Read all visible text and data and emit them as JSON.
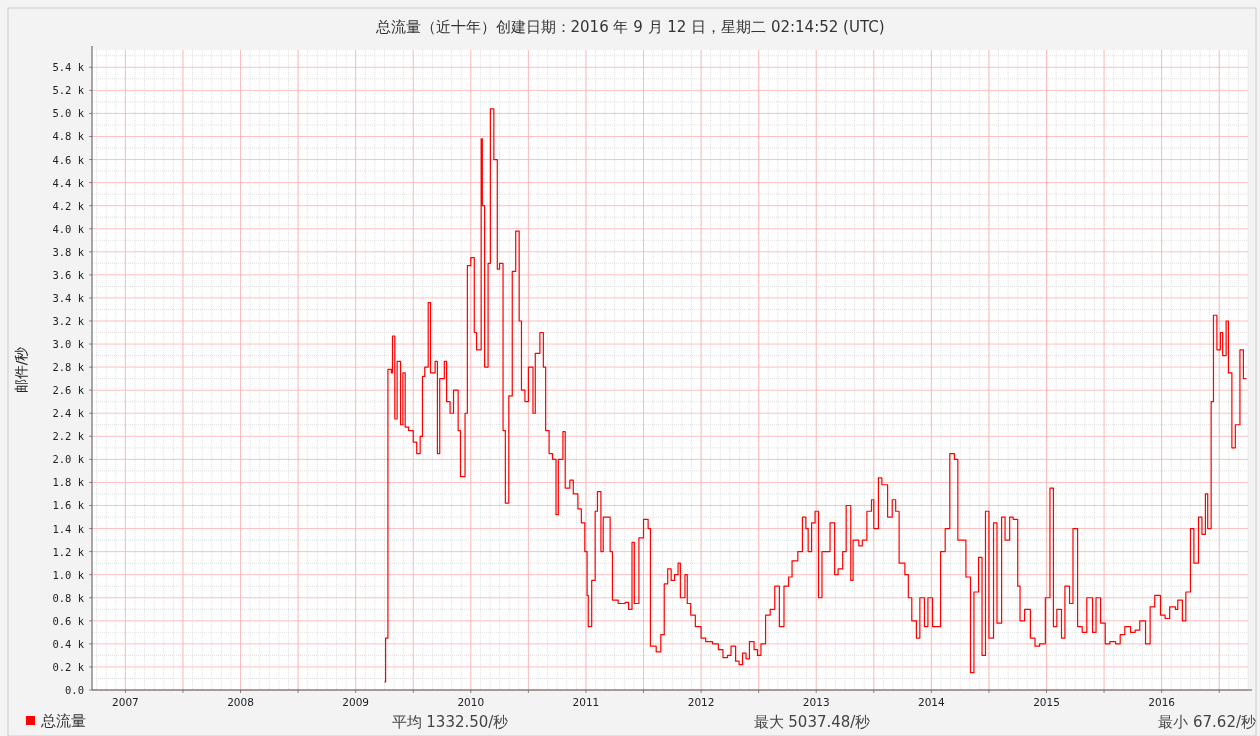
{
  "chart_data": {
    "type": "step",
    "title": "总流量（近十年）创建日期：2016 年 9 月 12 日，星期二 02:14:52 (UTC)",
    "ylabel": "邮件/秒",
    "annotations": [
      "平均 1332.50/秒",
      "最大 5037.48/秒",
      "最小 67.62/秒"
    ],
    "legend": "bottom left",
    "grid": true,
    "xlim": [
      2006.71,
      2016.75
    ],
    "ylim": [
      0,
      5550
    ],
    "xticks": [
      2007,
      {
        "value": 2007.5,
        "label": null
      },
      2008,
      {
        "value": 2008.5,
        "label": null
      },
      2009,
      {
        "value": 2009.5,
        "label": null
      },
      2010,
      {
        "value": 2010.5,
        "label": null
      },
      2011,
      {
        "value": 2011.5,
        "label": null
      },
      2012,
      {
        "value": 2012.5,
        "label": null
      },
      2013,
      {
        "value": 2013.5,
        "label": null
      },
      2014,
      {
        "value": 2014.5,
        "label": null
      },
      2015,
      {
        "value": 2015.5,
        "label": null
      },
      2016,
      {
        "value": 2016.5,
        "label": null
      }
    ],
    "yticks": [
      {
        "value": 0,
        "label": "0.0"
      },
      {
        "value": 200,
        "label": "0.2 k"
      },
      {
        "value": 400,
        "label": "0.4 k"
      },
      {
        "value": 600,
        "label": "0.6 k"
      },
      {
        "value": 800,
        "label": "0.8 k"
      },
      {
        "value": 1000,
        "label": "1.0 k"
      },
      {
        "value": 1200,
        "label": "1.2 k"
      },
      {
        "value": 1400,
        "label": "1.4 k"
      },
      {
        "value": 1600,
        "label": "1.6 k"
      },
      {
        "value": 1800,
        "label": "1.8 k"
      },
      {
        "value": 2000,
        "label": "2.0 k"
      },
      {
        "value": 2200,
        "label": "2.2 k"
      },
      {
        "value": 2400,
        "label": "2.4 k"
      },
      {
        "value": 2600,
        "label": "2.6 k"
      },
      {
        "value": 2800,
        "label": "2.8 k"
      },
      {
        "value": 3000,
        "label": "3.0 k"
      },
      {
        "value": 3200,
        "label": "3.2 k"
      },
      {
        "value": 3400,
        "label": "3.4 k"
      },
      {
        "value": 3600,
        "label": "3.6 k"
      },
      {
        "value": 3800,
        "label": "3.8 k"
      },
      {
        "value": 4000,
        "label": "4.0 k"
      },
      {
        "value": 4200,
        "label": "4.2 k"
      },
      {
        "value": 4400,
        "label": "4.4 k"
      },
      {
        "value": 4600,
        "label": "4.6 k"
      },
      {
        "value": 4800,
        "label": "4.8 k"
      },
      {
        "value": 5000,
        "label": "5.0 k"
      },
      {
        "value": 5200,
        "label": "5.2 k"
      },
      {
        "value": 5400,
        "label": "5.4 k"
      }
    ],
    "series": [
      {
        "name": "总流量",
        "color": "#ff0000",
        "x": [
          2009.25,
          2009.26,
          2009.28,
          2009.31,
          2009.32,
          2009.34,
          2009.36,
          2009.39,
          2009.41,
          2009.43,
          2009.46,
          2009.5,
          2009.53,
          2009.56,
          2009.58,
          2009.6,
          2009.63,
          2009.65,
          2009.69,
          2009.71,
          2009.73,
          2009.77,
          2009.79,
          2009.82,
          2009.85,
          2009.89,
          2009.91,
          2009.95,
          2009.97,
          2010.0,
          2010.03,
          2010.05,
          2010.09,
          2010.1,
          2010.12,
          2010.15,
          2010.17,
          2010.2,
          2010.23,
          2010.25,
          2010.28,
          2010.3,
          2010.33,
          2010.36,
          2010.39,
          2010.42,
          2010.44,
          2010.47,
          2010.5,
          2010.54,
          2010.56,
          2010.6,
          2010.63,
          2010.65,
          2010.68,
          2010.71,
          2010.74,
          2010.76,
          2010.8,
          2010.82,
          2010.86,
          2010.89,
          2010.93,
          2010.96,
          2010.99,
          2011.01,
          2011.02,
          2011.05,
          2011.08,
          2011.1,
          2011.13,
          2011.15,
          2011.18,
          2011.21,
          2011.23,
          2011.28,
          2011.34,
          2011.37,
          2011.4,
          2011.42,
          2011.46,
          2011.5,
          2011.54,
          2011.56,
          2011.61,
          2011.65,
          2011.68,
          2011.71,
          2011.74,
          2011.77,
          2011.8,
          2011.82,
          2011.86,
          2011.88,
          2011.91,
          2011.95,
          2012.0,
          2012.04,
          2012.1,
          2012.15,
          2012.19,
          2012.23,
          2012.26,
          2012.3,
          2012.33,
          2012.36,
          2012.39,
          2012.42,
          2012.46,
          2012.49,
          2012.52,
          2012.56,
          2012.6,
          2012.64,
          2012.68,
          2012.72,
          2012.76,
          2012.79,
          2012.84,
          2012.88,
          2012.91,
          2012.93,
          2012.96,
          2012.99,
          2013.02,
          2013.05,
          2013.09,
          2013.12,
          2013.16,
          2013.19,
          2013.23,
          2013.26,
          2013.3,
          2013.32,
          2013.37,
          2013.4,
          2013.44,
          2013.48,
          2013.5,
          2013.54,
          2013.57,
          2013.62,
          2013.66,
          2013.69,
          2013.72,
          2013.77,
          2013.8,
          2013.83,
          2013.87,
          2013.9,
          2013.94,
          2013.97,
          2014.01,
          2014.04,
          2014.08,
          2014.12,
          2014.16,
          2014.2,
          2014.23,
          2014.27,
          2014.3,
          2014.34,
          2014.37,
          2014.41,
          2014.44,
          2014.47,
          2014.5,
          2014.54,
          2014.57,
          2014.61,
          2014.64,
          2014.68,
          2014.71,
          2014.75,
          2014.77,
          2014.81,
          2014.86,
          2014.9,
          2014.94,
          2014.99,
          2015.03,
          2015.06,
          2015.09,
          2015.13,
          2015.16,
          2015.2,
          2015.23,
          2015.27,
          2015.31,
          2015.35,
          2015.4,
          2015.43,
          2015.47,
          2015.51,
          2015.55,
          2015.6,
          2015.64,
          2015.68,
          2015.73,
          2015.77,
          2015.81,
          2015.86,
          2015.9,
          2015.94,
          2015.99,
          2016.03,
          2016.07,
          2016.12,
          2016.14,
          2016.18,
          2016.21,
          2016.25,
          2016.28,
          2016.32,
          2016.35,
          2016.38,
          2016.4,
          2016.43,
          2016.45,
          2016.48,
          2016.51,
          2016.53,
          2016.56,
          2016.58,
          2016.61,
          2016.64,
          2016.68,
          2016.71
        ],
        "values": [
          70,
          450,
          2780,
          2750,
          3070,
          2350,
          2850,
          2300,
          2750,
          2280,
          2250,
          2150,
          2050,
          2200,
          2720,
          2800,
          3360,
          2750,
          2850,
          2050,
          2700,
          2850,
          2500,
          2400,
          2600,
          2250,
          1850,
          2400,
          3680,
          3750,
          3100,
          2950,
          4780,
          4200,
          2800,
          3700,
          5040,
          4600,
          3650,
          3700,
          2250,
          1620,
          2550,
          3630,
          3980,
          3200,
          2600,
          2500,
          2800,
          2400,
          2920,
          3100,
          2800,
          2250,
          2050,
          2000,
          1520,
          2000,
          2240,
          1750,
          1820,
          1700,
          1570,
          1450,
          1200,
          820,
          550,
          950,
          1550,
          1720,
          1200,
          1500,
          1500,
          1200,
          780,
          750,
          760,
          700,
          1280,
          750,
          1320,
          1480,
          1400,
          380,
          330,
          480,
          920,
          1050,
          950,
          1000,
          1100,
          800,
          1000,
          750,
          650,
          550,
          450,
          420,
          400,
          350,
          280,
          300,
          380,
          250,
          220,
          320,
          270,
          420,
          350,
          300,
          400,
          650,
          700,
          900,
          550,
          900,
          980,
          1120,
          1200,
          1500,
          1400,
          1200,
          1450,
          1550,
          800,
          1200,
          1200,
          1450,
          1000,
          1050,
          1200,
          1600,
          950,
          1300,
          1250,
          1300,
          1550,
          1650,
          1400,
          1840,
          1780,
          1500,
          1650,
          1550,
          1100,
          1000,
          800,
          600,
          450,
          800,
          550,
          800,
          550,
          550,
          1200,
          1400,
          2050,
          2000,
          1300,
          1300,
          980,
          150,
          850,
          1150,
          300,
          1550,
          450,
          1450,
          580,
          1500,
          1300,
          1500,
          1480,
          900,
          600,
          700,
          450,
          380,
          400,
          800,
          1750,
          550,
          700,
          450,
          900,
          750,
          1400,
          550,
          500,
          800,
          500,
          800,
          580,
          400,
          420,
          400,
          480,
          550,
          500,
          520,
          600,
          400,
          720,
          820,
          650,
          620,
          720,
          700,
          780,
          600,
          850,
          1400,
          1100,
          1500,
          1350,
          1700,
          1400,
          2500,
          3250,
          2950,
          3100,
          2900,
          3200,
          2750,
          2100,
          2300,
          2950,
          2700
        ]
      }
    ]
  }
}
